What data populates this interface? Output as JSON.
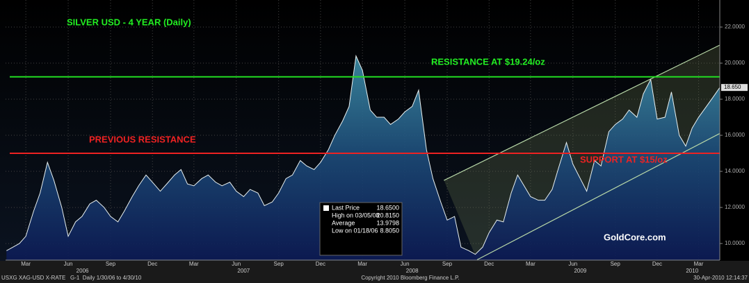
{
  "chart_data": {
    "type": "area",
    "title": "SILVER USD - 4 YEAR (Daily)",
    "annotations": {
      "resistance": "RESISTANCE AT $19.24/oz",
      "previous": "PREVIOUS RESISTANCE",
      "support": "SUPPORT AT $15/oz",
      "brand": "GoldCore.com"
    },
    "hlines": [
      {
        "value": 19.24,
        "color": "#22dd22"
      },
      {
        "value": 15,
        "color": "#ee2222"
      }
    ],
    "channel": {
      "upper": {
        "x": [
          "2008-09-08",
          "2010-04-30"
        ],
        "values": [
          13.5,
          21.0
        ]
      },
      "lower": {
        "x": [
          "2008-11-19",
          "2010-04-30"
        ],
        "values": [
          9.1,
          16.1
        ]
      }
    },
    "xlim": [
      "2006-01-30",
      "2010-04-30"
    ],
    "ylim": [
      9.08,
      23.5
    ],
    "yticks": [
      {
        "value": 10,
        "label": "10.0000"
      },
      {
        "value": 12,
        "label": "12.0000"
      },
      {
        "value": 14,
        "label": "14.0000"
      },
      {
        "value": 16,
        "label": "16.0000"
      },
      {
        "value": 18,
        "label": "18.0000"
      },
      {
        "value": 20,
        "label": "20.0000"
      },
      {
        "value": 22,
        "label": "22.0000"
      }
    ],
    "xticks": [
      {
        "value": "2006-03-15",
        "label": "Mar"
      },
      {
        "value": "2006-06-15",
        "label": "Jun"
      },
      {
        "value": "2006-09-15",
        "label": "Sep"
      },
      {
        "value": "2006-12-15",
        "label": "Dec"
      },
      {
        "value": "2007-03-15",
        "label": "Mar"
      },
      {
        "value": "2007-06-15",
        "label": "Jun"
      },
      {
        "value": "2007-09-15",
        "label": "Sep"
      },
      {
        "value": "2007-12-15",
        "label": "Dec"
      },
      {
        "value": "2008-03-15",
        "label": "Mar"
      },
      {
        "value": "2008-06-15",
        "label": "Jun"
      },
      {
        "value": "2008-09-15",
        "label": "Sep"
      },
      {
        "value": "2008-12-15",
        "label": "Dec"
      },
      {
        "value": "2009-03-15",
        "label": "Mar"
      },
      {
        "value": "2009-06-15",
        "label": "Jun"
      },
      {
        "value": "2009-09-15",
        "label": "Sep"
      },
      {
        "value": "2009-12-15",
        "label": "Dec"
      },
      {
        "value": "2010-03-15",
        "label": "Mar"
      }
    ],
    "year_ticks": [
      {
        "value": "2006-07-16",
        "label": "2006"
      },
      {
        "value": "2007-07-01",
        "label": "2007"
      },
      {
        "value": "2008-07-01",
        "label": "2008"
      },
      {
        "value": "2009-07-01",
        "label": "2009"
      },
      {
        "value": "2010-03-01",
        "label": "2010"
      }
    ],
    "x": [
      "2006-02-01",
      "2006-02-15",
      "2006-03-01",
      "2006-03-15",
      "2006-04-01",
      "2006-04-15",
      "2006-05-01",
      "2006-05-15",
      "2006-06-01",
      "2006-06-15",
      "2006-07-01",
      "2006-07-15",
      "2006-08-01",
      "2006-08-15",
      "2006-09-01",
      "2006-09-15",
      "2006-10-01",
      "2006-10-15",
      "2006-11-01",
      "2006-11-15",
      "2006-12-01",
      "2006-12-15",
      "2007-01-01",
      "2007-01-15",
      "2007-02-01",
      "2007-02-15",
      "2007-03-01",
      "2007-03-15",
      "2007-04-01",
      "2007-04-15",
      "2007-05-01",
      "2007-05-15",
      "2007-06-01",
      "2007-06-15",
      "2007-07-01",
      "2007-07-15",
      "2007-08-01",
      "2007-08-15",
      "2007-09-01",
      "2007-09-15",
      "2007-10-01",
      "2007-10-15",
      "2007-11-01",
      "2007-11-15",
      "2007-12-01",
      "2007-12-15",
      "2008-01-01",
      "2008-01-15",
      "2008-02-01",
      "2008-02-15",
      "2008-03-01",
      "2008-03-15",
      "2008-04-01",
      "2008-04-15",
      "2008-05-01",
      "2008-05-15",
      "2008-06-01",
      "2008-06-15",
      "2008-07-01",
      "2008-07-15",
      "2008-08-01",
      "2008-08-15",
      "2008-09-01",
      "2008-09-15",
      "2008-10-01",
      "2008-10-15",
      "2008-11-01",
      "2008-11-15",
      "2008-12-01",
      "2008-12-15",
      "2009-01-01",
      "2009-01-15",
      "2009-02-01",
      "2009-02-15",
      "2009-03-01",
      "2009-03-15",
      "2009-04-01",
      "2009-04-15",
      "2009-05-01",
      "2009-05-15",
      "2009-06-01",
      "2009-06-15",
      "2009-07-01",
      "2009-07-15",
      "2009-08-01",
      "2009-08-15",
      "2009-09-01",
      "2009-09-15",
      "2009-10-01",
      "2009-10-15",
      "2009-11-01",
      "2009-11-15",
      "2009-12-01",
      "2009-12-15",
      "2010-01-01",
      "2010-01-15",
      "2010-02-01",
      "2010-02-15",
      "2010-03-01",
      "2010-03-15",
      "2010-04-01",
      "2010-04-15",
      "2010-04-30"
    ],
    "series": [
      {
        "name": "Last Price",
        "color": "#e8f0f0",
        "values": [
          9.6,
          9.8,
          10.0,
          10.4,
          11.8,
          12.8,
          14.5,
          13.5,
          12.0,
          10.4,
          11.2,
          11.5,
          12.2,
          12.4,
          12.0,
          11.5,
          11.2,
          11.8,
          12.6,
          13.2,
          13.8,
          13.4,
          12.9,
          13.3,
          13.8,
          14.1,
          13.3,
          13.2,
          13.6,
          13.8,
          13.4,
          13.2,
          13.4,
          12.9,
          12.6,
          13.0,
          12.8,
          12.1,
          12.3,
          12.8,
          13.6,
          13.8,
          14.6,
          14.3,
          14.1,
          14.5,
          15.2,
          16.0,
          16.8,
          17.6,
          20.4,
          19.6,
          17.4,
          17.0,
          17.0,
          16.6,
          16.9,
          17.3,
          17.6,
          18.5,
          15.2,
          13.6,
          12.3,
          11.3,
          11.5,
          9.8,
          9.6,
          9.4,
          9.8,
          10.6,
          11.3,
          11.2,
          12.8,
          13.8,
          13.2,
          12.6,
          12.4,
          12.4,
          13.0,
          14.2,
          15.6,
          14.4,
          13.6,
          12.9,
          14.6,
          14.3,
          16.2,
          16.6,
          16.9,
          17.4,
          17.0,
          18.3,
          19.1,
          16.9,
          17.0,
          18.4,
          16.0,
          15.4,
          16.4,
          17.0,
          17.6,
          18.1,
          18.65
        ]
      }
    ],
    "last_label": {
      "value": 18.65,
      "label": "18.650"
    },
    "legend_rows": [
      {
        "label": "Last Price",
        "value": "18.6500"
      },
      {
        "label": "High on 03/05/08",
        "value": "20.8150"
      },
      {
        "label": "Average",
        "value": "13.9798"
      },
      {
        "label": "Low on 01/18/06",
        "value": "8.8050"
      }
    ],
    "footer": {
      "left": "USXG XAG-USD X-RATE   G-1  Daily 1/30/06 to 4/30/10",
      "center": "Copyright 2010 Bloomberg Finance L.P.",
      "right": "30-Apr-2010 12:14:37"
    }
  }
}
